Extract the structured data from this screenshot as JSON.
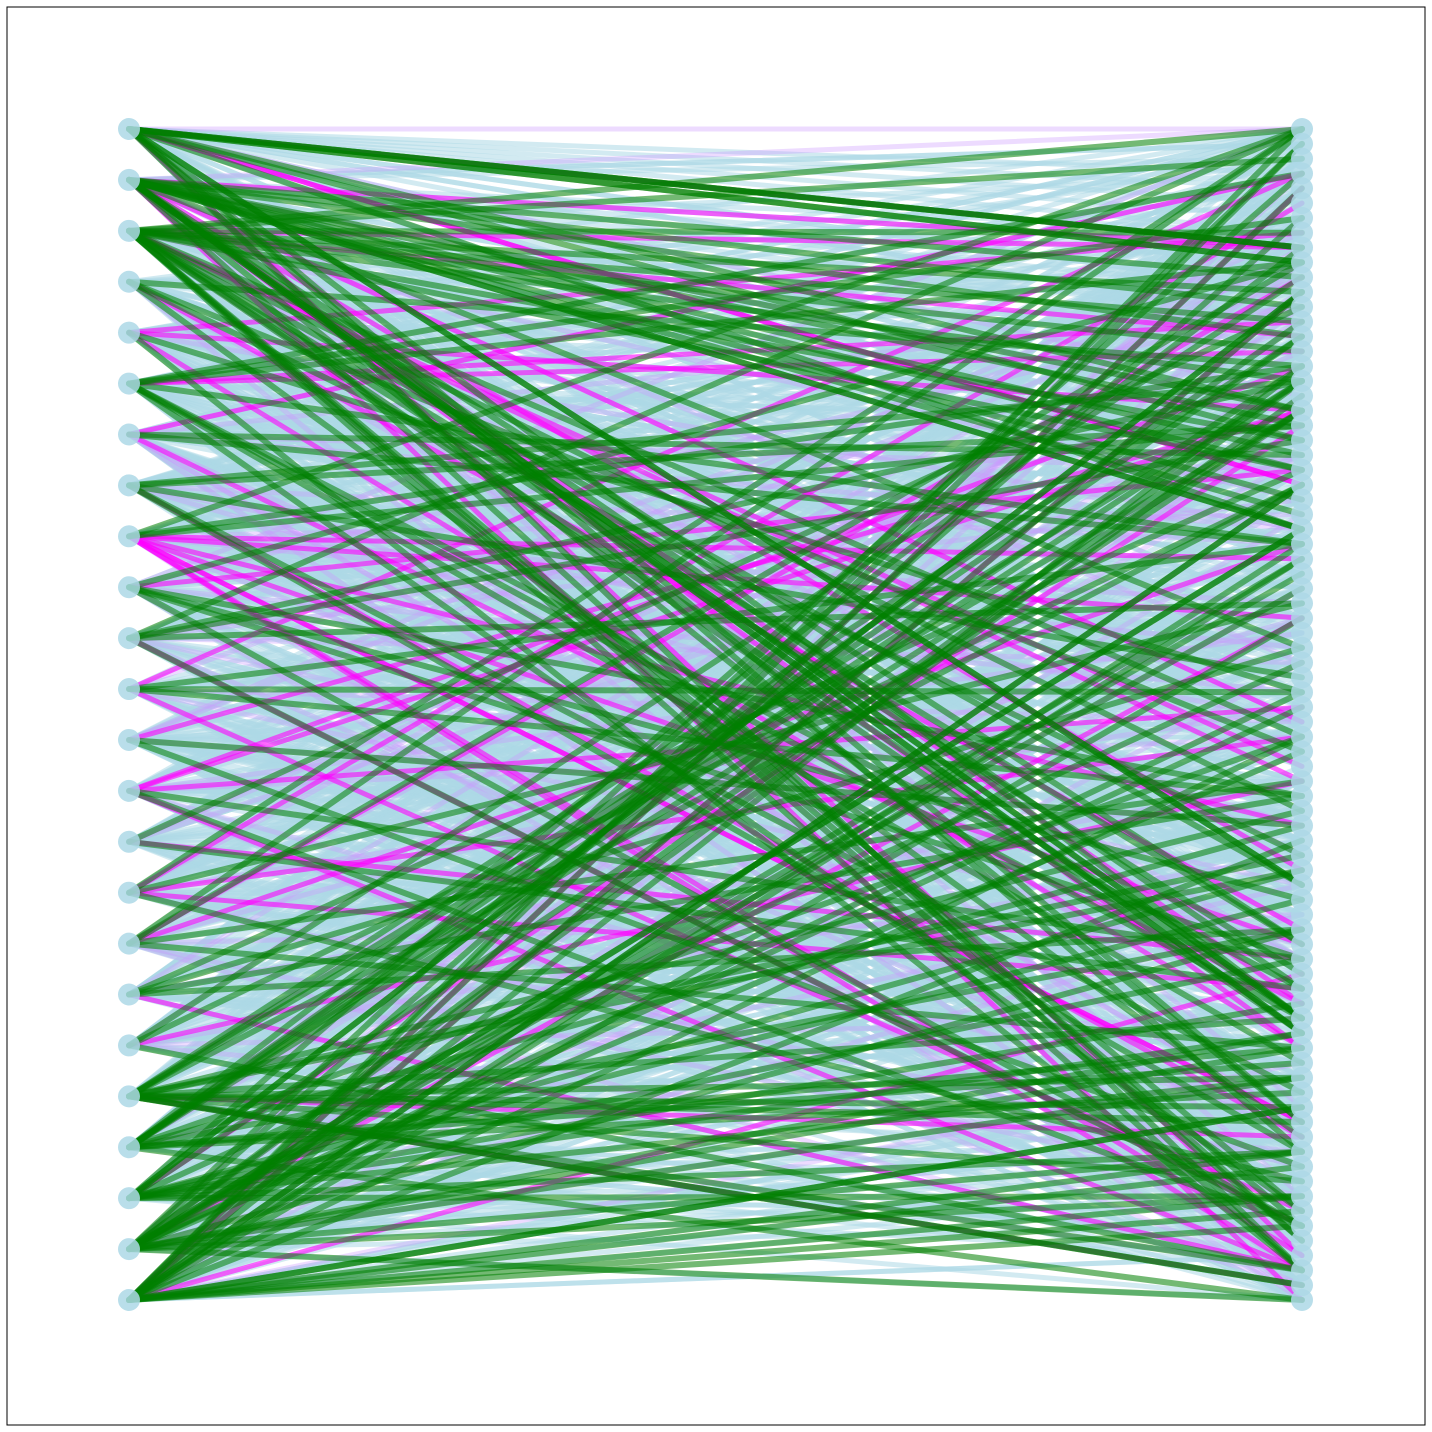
{
  "diagram": {
    "type": "bipartite-graph",
    "left_node_count": 24,
    "right_node_count": 80,
    "node_color": "#add8e6",
    "edge_colors": {
      "base": "#add8e6",
      "highlight_a": "#008000",
      "highlight_b": "#ff00ff",
      "highlight_c": "#cc99ff"
    },
    "edge_counts": {
      "base": 900,
      "highlight_a": 190,
      "highlight_b": 55,
      "highlight_c": 90
    },
    "frame": true
  }
}
